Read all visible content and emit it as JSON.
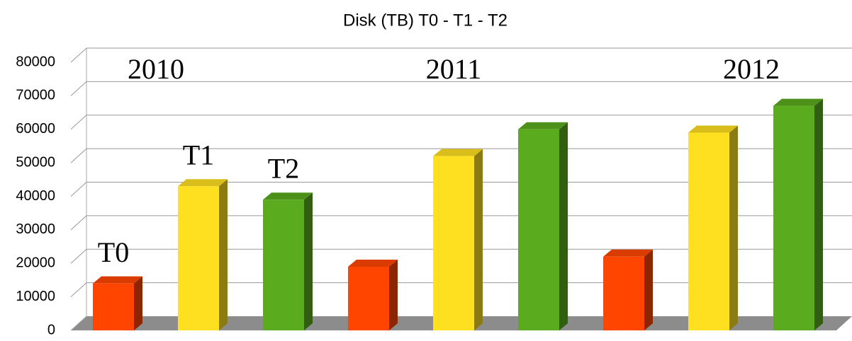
{
  "chart_data": {
    "type": "bar3d",
    "title": "Disk (TB) T0 - T1 - T2",
    "categories": [
      "2010",
      "2011",
      "2012"
    ],
    "series": [
      {
        "name": "T0",
        "color": "#ff4500",
        "values": [
          14000,
          19000,
          22000
        ]
      },
      {
        "name": "T1",
        "color": "#ffe020",
        "values": [
          43000,
          52000,
          59000
        ]
      },
      {
        "name": "T2",
        "color": "#5aab1e",
        "values": [
          39000,
          60000,
          67000
        ]
      }
    ],
    "ylim": [
      0,
      80000
    ],
    "yticks": [
      0,
      10000,
      20000,
      30000,
      40000,
      50000,
      60000,
      70000,
      80000
    ],
    "grid": true
  }
}
